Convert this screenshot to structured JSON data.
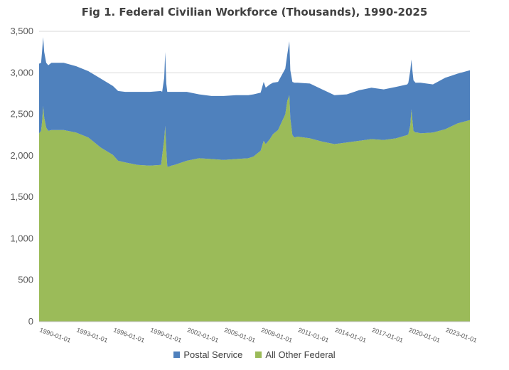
{
  "chart_data": {
    "type": "area",
    "stacked": true,
    "title": "Fig 1. Federal Civilian Workforce (Thousands), 1990-2025",
    "xlabel": "",
    "ylabel": "",
    "ylim": [
      0,
      3500
    ],
    "yticks": [
      "0",
      "500",
      "1,000",
      "1,500",
      "2,000",
      "2,500",
      "3,000",
      "3,500"
    ],
    "xticks": [
      "1990-01-01",
      "1993-01-01",
      "1996-01-01",
      "1999-01-01",
      "2002-01-01",
      "2005-01-01",
      "2008-01-01",
      "2011-01-01",
      "2014-01-01",
      "2017-01-01",
      "2020-01-01",
      "2023-01-01"
    ],
    "grid": true,
    "legend_position": "bottom",
    "x": [
      "1990-01",
      "1990-03",
      "1990-04",
      "1990-05",
      "1990-06",
      "1990-08",
      "1990-10",
      "1991-01",
      "1992-01",
      "1993-01",
      "1994-01",
      "1995-01",
      "1996-01",
      "1996-06",
      "1997-01",
      "1998-01",
      "1999-01",
      "1999-12",
      "2000-01",
      "2000-03",
      "2000-04",
      "2000-05",
      "2000-06",
      "2000-08",
      "2000-10",
      "2001-01",
      "2002-01",
      "2003-01",
      "2004-01",
      "2005-01",
      "2006-01",
      "2007-01",
      "2007-06",
      "2008-01",
      "2008-04",
      "2008-06",
      "2008-10",
      "2009-01",
      "2009-06",
      "2010-01",
      "2010-03",
      "2010-05",
      "2010-06",
      "2010-08",
      "2010-10",
      "2011-01",
      "2012-01",
      "2013-01",
      "2014-01",
      "2015-01",
      "2016-01",
      "2017-01",
      "2018-01",
      "2019-01",
      "2019-12",
      "2020-01",
      "2020-03",
      "2020-04",
      "2020-05",
      "2020-06",
      "2020-08",
      "2020-10",
      "2021-01",
      "2022-01",
      "2023-01",
      "2024-01",
      "2025-01"
    ],
    "series": [
      {
        "name": "All Other Federal",
        "color": "#9bbb59",
        "values": [
          2270,
          2300,
          2420,
          2600,
          2460,
          2340,
          2300,
          2310,
          2310,
          2280,
          2220,
          2100,
          2010,
          1940,
          1920,
          1890,
          1880,
          1890,
          2000,
          2200,
          2360,
          2080,
          1870,
          1870,
          1880,
          1890,
          1940,
          1970,
          1960,
          1950,
          1960,
          1970,
          1990,
          2060,
          2180,
          2140,
          2200,
          2260,
          2310,
          2500,
          2660,
          2730,
          2450,
          2250,
          2220,
          2230,
          2210,
          2170,
          2140,
          2160,
          2180,
          2200,
          2190,
          2210,
          2250,
          2260,
          2370,
          2560,
          2430,
          2300,
          2280,
          2280,
          2270,
          2280,
          2320,
          2390,
          2430
        ]
      },
      {
        "name": "Postal Service",
        "color": "#4f81bd",
        "values": [
          840,
          820,
          850,
          830,
          790,
          780,
          790,
          810,
          810,
          800,
          800,
          830,
          830,
          840,
          850,
          880,
          890,
          890,
          770,
          740,
          890,
          790,
          900,
          900,
          890,
          880,
          830,
          770,
          760,
          770,
          770,
          760,
          750,
          700,
          710,
          680,
          660,
          620,
          580,
          550,
          560,
          650,
          580,
          640,
          660,
          650,
          660,
          630,
          590,
          580,
          610,
          620,
          610,
          620,
          610,
          620,
          660,
          600,
          600,
          610,
          600,
          600,
          610,
          580,
          620,
          600,
          600
        ]
      }
    ]
  },
  "legend": {
    "items": [
      {
        "label": "Postal Service",
        "color": "#4f81bd"
      },
      {
        "label": "All Other Federal",
        "color": "#9bbb59"
      }
    ]
  }
}
